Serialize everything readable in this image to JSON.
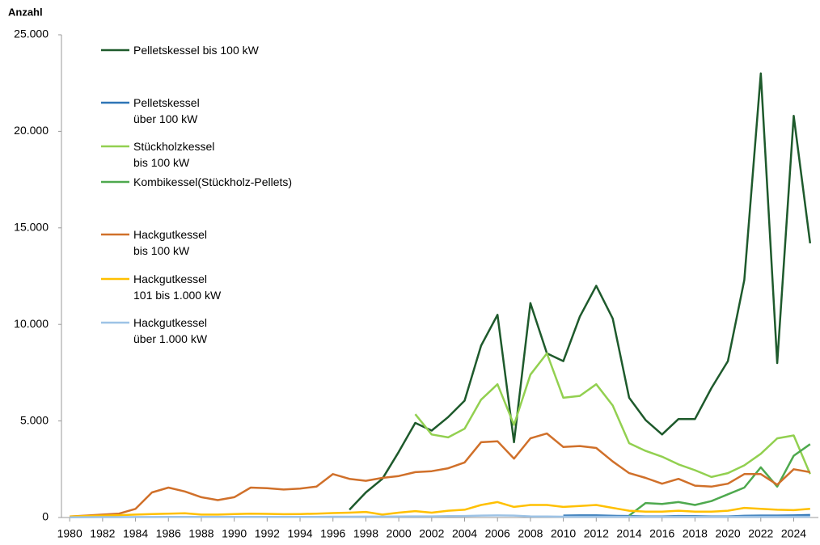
{
  "chart_data": {
    "type": "line",
    "y_label": "Anzahl",
    "x": [
      1980,
      1981,
      1982,
      1983,
      1984,
      1985,
      1986,
      1987,
      1988,
      1989,
      1990,
      1991,
      1992,
      1993,
      1994,
      1995,
      1996,
      1997,
      1998,
      1999,
      2000,
      2001,
      2002,
      2003,
      2004,
      2005,
      2006,
      2007,
      2008,
      2009,
      2010,
      2011,
      2012,
      2013,
      2014,
      2015,
      2016,
      2017,
      2018,
      2019,
      2020,
      2021,
      2022,
      2023,
      2024,
      2025
    ],
    "xlim": [
      1979.5,
      2025.5
    ],
    "xticks": [
      1980,
      1982,
      1984,
      1986,
      1988,
      1990,
      1992,
      1994,
      1996,
      1998,
      2000,
      2002,
      2004,
      2006,
      2008,
      2010,
      2012,
      2014,
      2016,
      2018,
      2020,
      2022,
      2024
    ],
    "ylim": [
      0,
      25000
    ],
    "yticks": [
      0,
      {
        "value": 5000,
        "label": "5.000"
      },
      {
        "value": 10000,
        "label": "10.000"
      },
      {
        "value": 15000,
        "label": "15.000"
      },
      {
        "value": 20000,
        "label": "20.000"
      },
      {
        "value": 25000,
        "label": "25.000"
      }
    ],
    "grid": false,
    "legend": "upper left",
    "series": [
      {
        "name": "Pelletskessel bis 100 kW",
        "color": "#1e5a2c",
        "values": [
          null,
          null,
          null,
          null,
          null,
          null,
          null,
          null,
          null,
          null,
          null,
          null,
          null,
          null,
          null,
          null,
          null,
          400,
          1300,
          2000,
          3400,
          4900,
          4500,
          5200,
          6050,
          8900,
          10500,
          3900,
          11100,
          8500,
          8100,
          10400,
          12000,
          10300,
          6200,
          5050,
          4300,
          5100,
          5100,
          6700,
          8100,
          12300,
          23000,
          8000,
          20800,
          14200
        ]
      },
      {
        "name": "Pelletskessel\nüber 100 kW",
        "color": "#2e75b6",
        "values": [
          null,
          null,
          null,
          null,
          null,
          null,
          null,
          null,
          null,
          null,
          null,
          null,
          null,
          null,
          null,
          null,
          null,
          null,
          null,
          null,
          null,
          null,
          null,
          null,
          null,
          null,
          null,
          null,
          null,
          null,
          100,
          110,
          110,
          90,
          80,
          60,
          60,
          80,
          70,
          60,
          60,
          90,
          100,
          100,
          110,
          130
        ]
      },
      {
        "name": "Stückholzkessel\nbis 100 kW",
        "color": "#92d050",
        "values": [
          null,
          null,
          null,
          null,
          null,
          null,
          null,
          null,
          null,
          null,
          null,
          null,
          null,
          null,
          null,
          null,
          null,
          null,
          null,
          null,
          null,
          5350,
          4300,
          4150,
          4600,
          6100,
          6900,
          4800,
          7400,
          8500,
          6200,
          6300,
          6900,
          5800,
          3850,
          3450,
          3150,
          2750,
          2450,
          2100,
          2300,
          2700,
          3300,
          4100,
          4250,
          2250
        ]
      },
      {
        "name": "Kombikessel(Stückholz-Pellets)",
        "color": "#4ea94e",
        "values": [
          null,
          null,
          null,
          null,
          null,
          null,
          null,
          null,
          null,
          null,
          null,
          null,
          null,
          null,
          null,
          null,
          null,
          null,
          null,
          null,
          null,
          null,
          null,
          null,
          null,
          null,
          null,
          null,
          null,
          null,
          null,
          null,
          null,
          null,
          100,
          750,
          700,
          800,
          650,
          850,
          1200,
          1550,
          2600,
          1600,
          3200,
          3800
        ]
      },
      {
        "name": "Hackgutkessel\nbis 100 kW",
        "color": "#d0702a",
        "values": [
          50,
          100,
          150,
          200,
          450,
          1300,
          1550,
          1350,
          1050,
          900,
          1050,
          1550,
          1520,
          1450,
          1500,
          1600,
          2250,
          2000,
          1900,
          2050,
          2150,
          2350,
          2400,
          2550,
          2850,
          3900,
          3950,
          3050,
          4100,
          4350,
          3650,
          3700,
          3600,
          2900,
          2300,
          2050,
          1750,
          2000,
          1650,
          1600,
          1750,
          2250,
          2250,
          1700,
          2500,
          2350
        ]
      },
      {
        "name": "Hackgutkessel\n101 bis 1.000 kW",
        "color": "#ffc000",
        "values": [
          50,
          80,
          100,
          120,
          150,
          180,
          200,
          220,
          150,
          150,
          180,
          200,
          190,
          170,
          180,
          200,
          230,
          250,
          290,
          150,
          250,
          330,
          250,
          350,
          400,
          650,
          800,
          550,
          650,
          650,
          550,
          600,
          650,
          500,
          350,
          300,
          300,
          350,
          300,
          300,
          350,
          500,
          450,
          400,
          380,
          450
        ]
      },
      {
        "name": "Hackgutkessel\nüber 1.000 kW",
        "color": "#9dc3e6",
        "values": [
          10,
          15,
          20,
          20,
          25,
          25,
          30,
          30,
          30,
          30,
          30,
          30,
          30,
          30,
          35,
          35,
          40,
          40,
          45,
          45,
          50,
          60,
          60,
          70,
          80,
          100,
          110,
          100,
          60,
          50,
          40,
          40,
          40,
          40,
          40,
          40,
          40,
          40,
          40,
          40,
          40,
          40,
          40,
          40,
          40,
          40
        ]
      }
    ]
  }
}
